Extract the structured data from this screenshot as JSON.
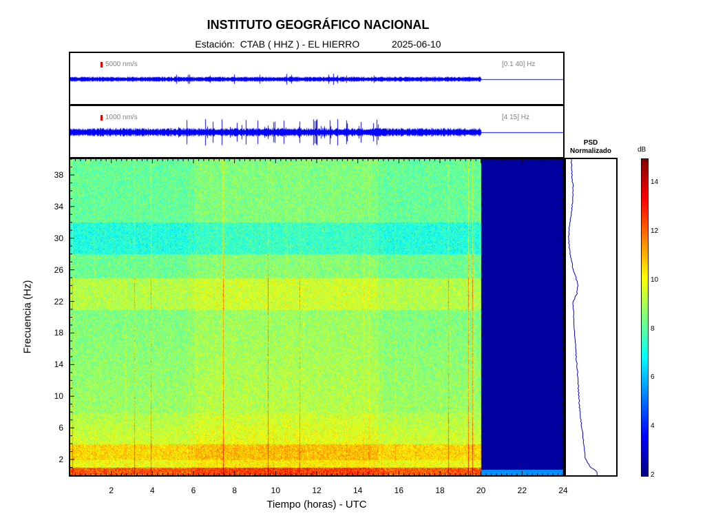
{
  "header": {
    "title": "INSTITUTO GEOGRÁFICO NACIONAL",
    "station_prefix": "Estación:",
    "station": "CTAB ( HHZ ) - EL HIERRO",
    "date": "2025-06-10"
  },
  "traces": [
    {
      "scale_label": "5000 nm/s",
      "band_label": "[0.1 40] Hz",
      "color": "#0000ff"
    },
    {
      "scale_label": "1000 nm/s",
      "band_label": "[4 15] Hz",
      "color": "#0000ff"
    }
  ],
  "psd": {
    "title_line1": "PSD",
    "title_line2": "Normalizado"
  },
  "colorbar": {
    "unit": "dB",
    "min": 2,
    "max": 15,
    "ticks": [
      2,
      4,
      6,
      8,
      10,
      12,
      14
    ]
  },
  "chart_data": {
    "type": "heatmap",
    "xlabel": "Tiempo (horas) - UTC",
    "ylabel": "Frecuencia  (Hz)",
    "xlim": [
      0,
      24
    ],
    "ylim": [
      0,
      40
    ],
    "x_ticks": [
      2,
      4,
      6,
      8,
      10,
      12,
      14,
      16,
      18,
      20,
      22,
      24
    ],
    "y_ticks": [
      2,
      6,
      10,
      14,
      18,
      22,
      26,
      30,
      34,
      38
    ],
    "data_end_hour": 20,
    "psd_profile": {
      "freq": [
        0.5,
        1,
        2,
        3,
        4,
        6,
        8,
        10,
        12,
        14,
        16,
        18,
        20,
        22,
        23,
        24,
        25,
        26,
        28,
        30,
        32,
        34,
        36,
        38,
        40
      ],
      "value": [
        0.62,
        0.48,
        0.38,
        0.36,
        0.34,
        0.3,
        0.26,
        0.24,
        0.22,
        0.2,
        0.17,
        0.15,
        0.13,
        0.12,
        0.2,
        0.22,
        0.18,
        0.12,
        0.06,
        0.02,
        0.06,
        0.1,
        0.12,
        0.1,
        0.08
      ]
    }
  }
}
